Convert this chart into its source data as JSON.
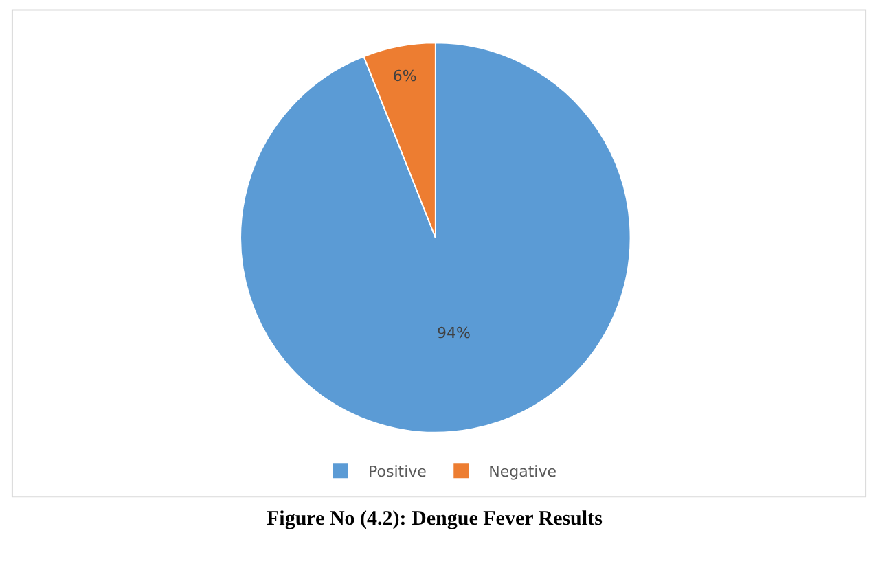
{
  "chart_data": {
    "type": "pie",
    "title": "Figure No (4.2): Dengue Fever Results",
    "categories": [
      "Positive",
      "Negative"
    ],
    "values": [
      94,
      6
    ],
    "colors": [
      "#5b9bd5",
      "#ed7d31"
    ],
    "value_labels": [
      "94%",
      "6%"
    ],
    "legend": "bottom"
  }
}
